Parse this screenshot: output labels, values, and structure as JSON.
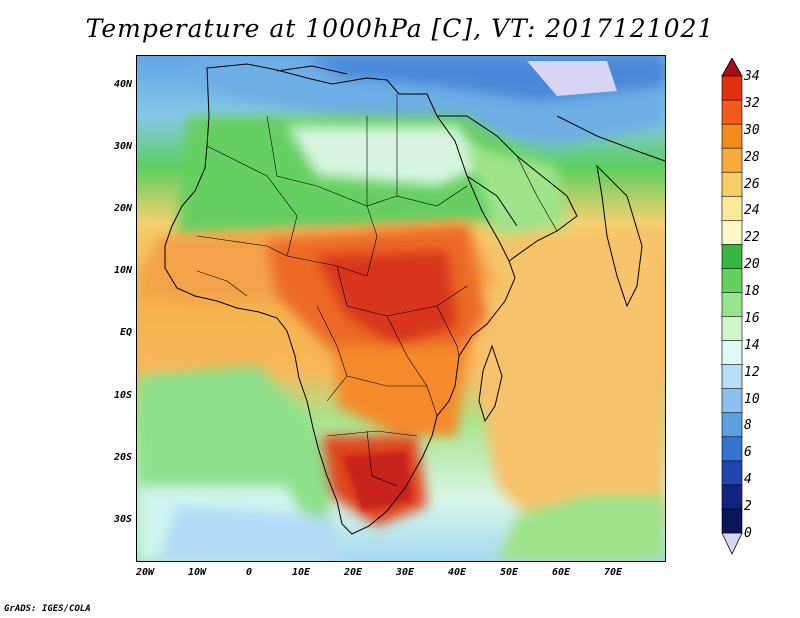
{
  "title": "Temperature at 1000hPa [C], VT: 2017121021",
  "credit": "GrADS: IGES/COLA",
  "lat_labels": [
    "40N",
    "30N",
    "20N",
    "10N",
    "EQ",
    "10S",
    "20S",
    "30S"
  ],
  "lon_labels": [
    "20W",
    "10W",
    "0",
    "10E",
    "20E",
    "30E",
    "40E",
    "50E",
    "60E",
    "70E"
  ],
  "colorbar": {
    "levels": [
      "34",
      "32",
      "30",
      "28",
      "26",
      "24",
      "22",
      "20",
      "18",
      "16",
      "14",
      "12",
      "10",
      "8",
      "6",
      "4",
      "2",
      "0"
    ],
    "colors": [
      "#a50f15",
      "#e03010",
      "#f05a1e",
      "#f58a1e",
      "#f6ab3c",
      "#f8cd68",
      "#faea9a",
      "#fbf8c8",
      "#36b540",
      "#64d05e",
      "#96e58a",
      "#cff5c8",
      "#e2f6f4",
      "#b6dcf6",
      "#8cc0ee",
      "#5e9fe0",
      "#3473ce",
      "#1e46ae",
      "#10237f",
      "#0a145a",
      "#d8d4f4"
    ]
  },
  "colors": {
    "ocean_south_cool": "#7cc6ee",
    "land_hot": "#d8361a",
    "border_line": "#000000"
  }
}
